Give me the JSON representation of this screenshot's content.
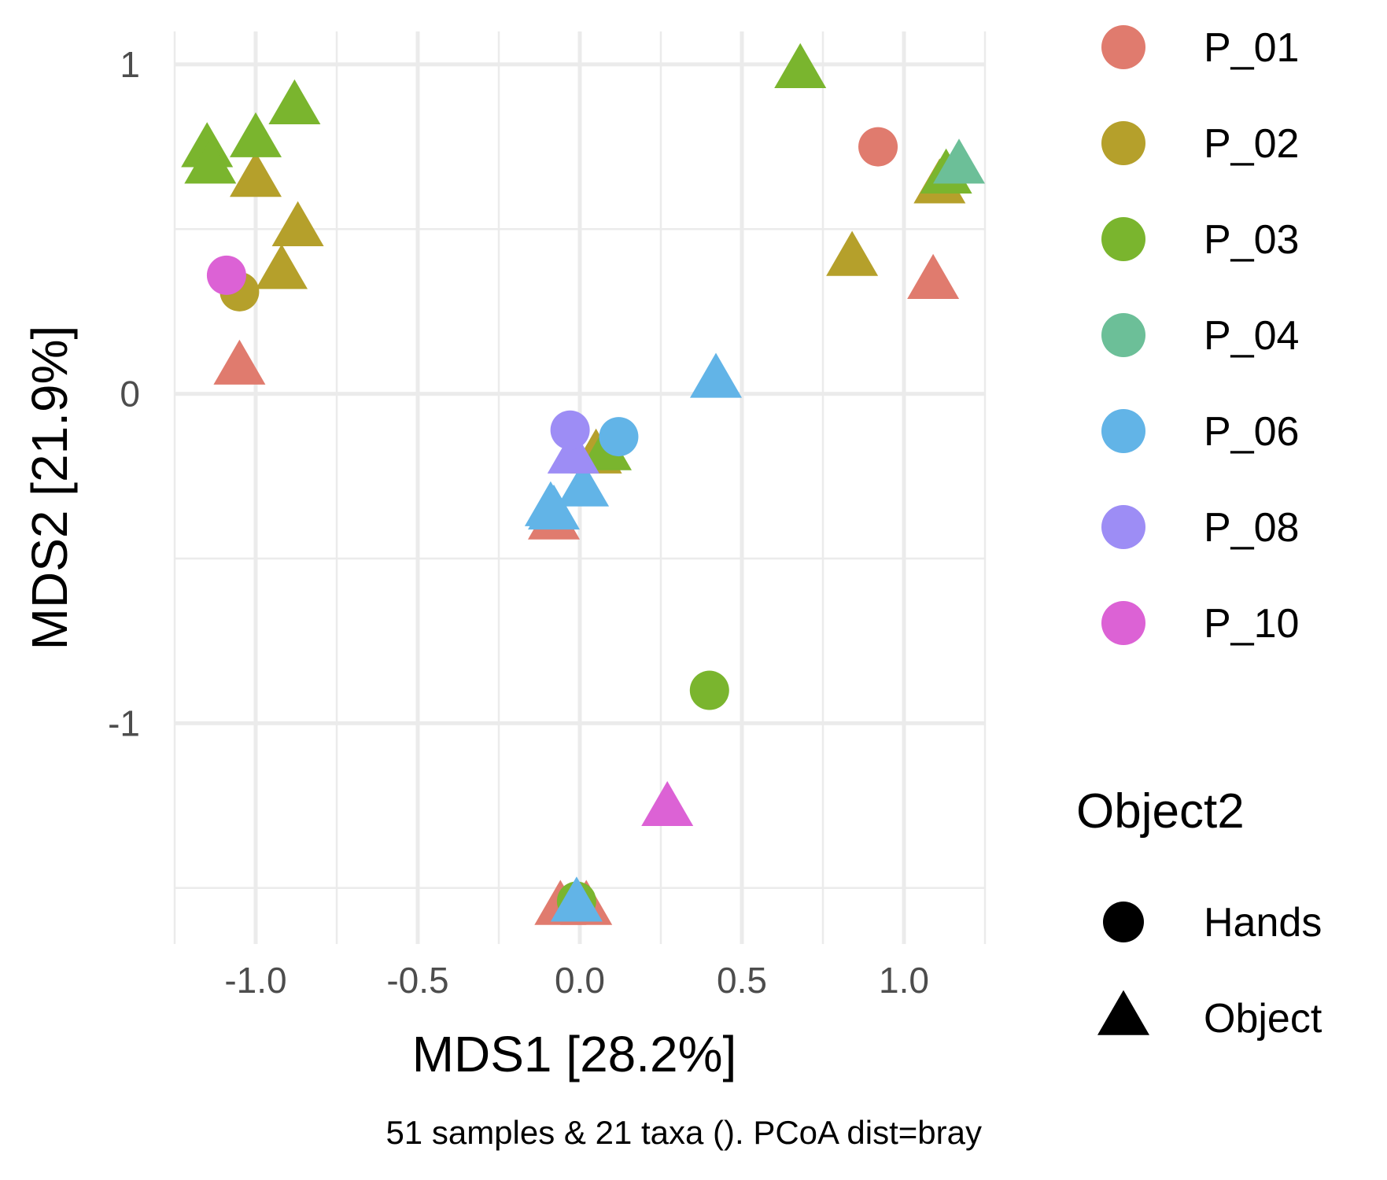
{
  "chart_data": {
    "type": "scatter",
    "title": "",
    "xlabel": "MDS1 [28.2%]",
    "ylabel": "MDS2 [21.9%]",
    "caption": "51 samples & 21 taxa (). PCoA dist=bray",
    "xlim": [
      -1.25,
      1.25
    ],
    "ylim": [
      -1.67,
      1.1
    ],
    "x_ticks": [
      -1.0,
      -0.5,
      0.0,
      0.5,
      1.0
    ],
    "x_tick_labels": [
      "-1.0",
      "-0.5",
      "0.0",
      "0.5",
      "1.0"
    ],
    "y_ticks": [
      1,
      0,
      -1
    ],
    "y_tick_labels": [
      "1",
      "0",
      "-1"
    ],
    "grid": true,
    "legend_position": "right",
    "color_legend": {
      "title": "",
      "entries": [
        {
          "label": "P_01",
          "color": "#E07B6E"
        },
        {
          "label": "P_02",
          "color": "#B5A02B"
        },
        {
          "label": "P_03",
          "color": "#7AB52E"
        },
        {
          "label": "P_04",
          "color": "#6CBF98"
        },
        {
          "label": "P_06",
          "color": "#62B4E7"
        },
        {
          "label": "P_08",
          "color": "#9D8DF5"
        },
        {
          "label": "P_10",
          "color": "#DC62D5"
        }
      ]
    },
    "shape_legend": {
      "title": "Object2",
      "entries": [
        {
          "label": "Hands",
          "shape": "circle"
        },
        {
          "label": "Object",
          "shape": "triangle"
        }
      ]
    },
    "points": [
      {
        "x": 0.92,
        "y": 0.75,
        "group": "P_01",
        "shape": "circle"
      },
      {
        "x": 1.09,
        "y": 0.34,
        "group": "P_01",
        "shape": "triangle"
      },
      {
        "x": -1.05,
        "y": 0.08,
        "group": "P_01",
        "shape": "triangle"
      },
      {
        "x": -0.08,
        "y": -0.39,
        "group": "P_01",
        "shape": "triangle"
      },
      {
        "x": -0.06,
        "y": -1.56,
        "group": "P_01",
        "shape": "triangle"
      },
      {
        "x": 0.02,
        "y": -1.56,
        "group": "P_01",
        "shape": "triangle"
      },
      {
        "x": -1.0,
        "y": 0.65,
        "group": "P_02",
        "shape": "triangle"
      },
      {
        "x": -0.87,
        "y": 0.5,
        "group": "P_02",
        "shape": "triangle"
      },
      {
        "x": -0.92,
        "y": 0.37,
        "group": "P_02",
        "shape": "triangle"
      },
      {
        "x": -1.05,
        "y": 0.31,
        "group": "P_02",
        "shape": "circle"
      },
      {
        "x": 1.11,
        "y": 0.63,
        "group": "P_02",
        "shape": "triangle"
      },
      {
        "x": 0.84,
        "y": 0.41,
        "group": "P_02",
        "shape": "triangle"
      },
      {
        "x": 0.05,
        "y": -0.19,
        "group": "P_02",
        "shape": "triangle"
      },
      {
        "x": 0.68,
        "y": 0.98,
        "group": "P_03",
        "shape": "triangle"
      },
      {
        "x": -0.88,
        "y": 0.87,
        "group": "P_03",
        "shape": "triangle"
      },
      {
        "x": -1.15,
        "y": 0.74,
        "group": "P_03",
        "shape": "triangle"
      },
      {
        "x": -1.0,
        "y": 0.77,
        "group": "P_03",
        "shape": "triangle"
      },
      {
        "x": -1.14,
        "y": 0.69,
        "group": "P_03",
        "shape": "triangle"
      },
      {
        "x": 1.13,
        "y": 0.66,
        "group": "P_03",
        "shape": "triangle"
      },
      {
        "x": 0.08,
        "y": -0.18,
        "group": "P_03",
        "shape": "triangle"
      },
      {
        "x": 0.4,
        "y": -0.9,
        "group": "P_03",
        "shape": "circle"
      },
      {
        "x": -0.01,
        "y": -1.54,
        "group": "P_03",
        "shape": "circle"
      },
      {
        "x": 1.17,
        "y": 0.69,
        "group": "P_04",
        "shape": "triangle"
      },
      {
        "x": 0.42,
        "y": 0.04,
        "group": "P_06",
        "shape": "triangle"
      },
      {
        "x": 0.12,
        "y": -0.13,
        "group": "P_06",
        "shape": "circle"
      },
      {
        "x": 0.01,
        "y": -0.29,
        "group": "P_06",
        "shape": "triangle"
      },
      {
        "x": -0.09,
        "y": -0.35,
        "group": "P_06",
        "shape": "triangle"
      },
      {
        "x": -0.08,
        "y": -0.36,
        "group": "P_06",
        "shape": "triangle"
      },
      {
        "x": -0.01,
        "y": -1.55,
        "group": "P_06",
        "shape": "triangle"
      },
      {
        "x": -0.02,
        "y": -0.19,
        "group": "P_08",
        "shape": "triangle"
      },
      {
        "x": -0.03,
        "y": -0.11,
        "group": "P_08",
        "shape": "circle"
      },
      {
        "x": -1.09,
        "y": 0.36,
        "group": "P_10",
        "shape": "circle"
      },
      {
        "x": 0.27,
        "y": -1.26,
        "group": "P_10",
        "shape": "triangle"
      }
    ]
  }
}
